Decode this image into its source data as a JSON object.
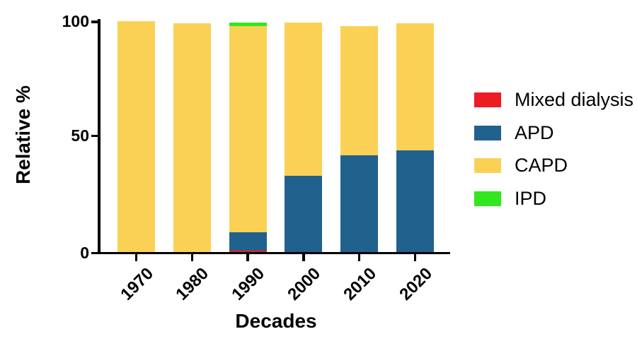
{
  "chart_data": {
    "type": "bar",
    "stacked": true,
    "orientation": "vertical",
    "xlabel": "Decades",
    "ylabel": "Relative %",
    "ylim": [
      0,
      100
    ],
    "ytick_labels": [
      "0",
      "50",
      "100"
    ],
    "grid": false,
    "legend_position": "right",
    "categories": [
      "1970",
      "1980",
      "1990",
      "2000",
      "2010",
      "2020"
    ],
    "series": [
      {
        "name": "Mixed dialysis",
        "color": "#ED1B24",
        "values": [
          0,
          0,
          0.7,
          0,
          0,
          0
        ]
      },
      {
        "name": "APD",
        "color": "#20618E",
        "values": [
          0,
          0,
          7.8,
          33,
          42,
          44
        ]
      },
      {
        "name": "CAPD",
        "color": "#FBD155",
        "values": [
          100,
          99,
          89.4,
          66.3,
          56,
          55
        ]
      },
      {
        "name": "IPD",
        "color": "#30E81C",
        "values": [
          0,
          0,
          1.5,
          0,
          0,
          0
        ]
      }
    ],
    "colors": {
      "axis": "#000000",
      "text": "#000000",
      "background": "#ffffff"
    }
  }
}
